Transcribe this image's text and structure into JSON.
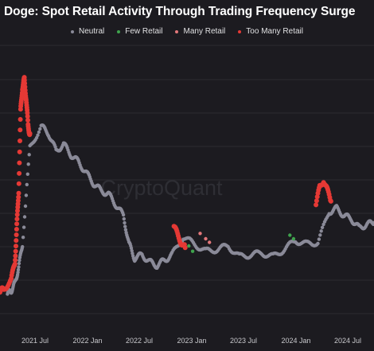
{
  "chart_data": {
    "type": "scatter",
    "title": "Doge: Spot Retail Activity Through Trading Frequency Surge",
    "watermark": "CryptoQuant",
    "xlabel": "",
    "ylabel": "",
    "x_ticks": [
      "2021 Jul",
      "2022 Jan",
      "2022 Jul",
      "2023 Jan",
      "2023 Jul",
      "2024 Jan",
      "2024 Jul",
      "2024 Jan"
    ],
    "legend_placement": "top-center",
    "grid": "horizontal",
    "colors": {
      "Neutral": "#8a8a98",
      "Few Retail": "#3fa34d",
      "Many Retail": "#e3777a",
      "Too Many Retail": "#e53935"
    },
    "series": [
      {
        "name": "Neutral",
        "points": [
          [
            0.02,
            0.1
          ],
          [
            0.03,
            0.2
          ],
          [
            0.04,
            0.4
          ],
          [
            0.05,
            0.85
          ],
          [
            0.06,
            1.5
          ],
          [
            0.08,
            4.2
          ],
          [
            0.11,
            4.8
          ],
          [
            0.13,
            4.6
          ],
          [
            0.15,
            4.1
          ],
          [
            0.17,
            4.3
          ],
          [
            0.19,
            4.0
          ],
          [
            0.21,
            3.8
          ],
          [
            0.23,
            3.5
          ],
          [
            0.25,
            3.2
          ],
          [
            0.27,
            3.0
          ],
          [
            0.29,
            2.9
          ],
          [
            0.31,
            2.6
          ],
          [
            0.33,
            2.3
          ],
          [
            0.345,
            1.5
          ],
          [
            0.36,
            1.1
          ],
          [
            0.38,
            1.2
          ],
          [
            0.4,
            1.0
          ],
          [
            0.42,
            0.9
          ],
          [
            0.44,
            1.05
          ],
          [
            0.46,
            1.2
          ],
          [
            0.49,
            1.7
          ],
          [
            0.52,
            1.5
          ],
          [
            0.55,
            1.3
          ],
          [
            0.58,
            1.35
          ],
          [
            0.61,
            1.45
          ],
          [
            0.64,
            1.15
          ],
          [
            0.67,
            1.2
          ],
          [
            0.7,
            1.25
          ],
          [
            0.73,
            1.15
          ],
          [
            0.76,
            1.35
          ],
          [
            0.79,
            1.6
          ],
          [
            0.82,
            1.5
          ],
          [
            0.85,
            1.55
          ],
          [
            0.88,
            2.4
          ],
          [
            0.9,
            2.5
          ],
          [
            0.92,
            2.3
          ],
          [
            0.94,
            2.2
          ],
          [
            0.96,
            1.95
          ],
          [
            0.98,
            2.05
          ],
          [
            1.0,
            2.1
          ]
        ]
      },
      {
        "name": "Few Retail",
        "points": [
          [
            0.505,
            1.45
          ],
          [
            0.515,
            1.3
          ],
          [
            0.775,
            1.75
          ],
          [
            0.785,
            1.65
          ]
        ]
      },
      {
        "name": "Many Retail",
        "points": [
          [
            0.535,
            1.8
          ],
          [
            0.55,
            1.65
          ],
          [
            0.56,
            1.55
          ]
        ]
      },
      {
        "name": "Too Many Retail",
        "points": [
          [
            0.0,
            0.15
          ],
          [
            0.01,
            0.25
          ],
          [
            0.03,
            0.5
          ],
          [
            0.04,
            1.0
          ],
          [
            0.045,
            2.0
          ],
          [
            0.05,
            3.0
          ],
          [
            0.055,
            5.2
          ],
          [
            0.06,
            5.9
          ],
          [
            0.065,
            6.1
          ],
          [
            0.07,
            5.6
          ],
          [
            0.075,
            4.8
          ],
          [
            0.08,
            4.6
          ],
          [
            0.465,
            2.0
          ],
          [
            0.475,
            1.75
          ],
          [
            0.485,
            1.55
          ],
          [
            0.495,
            1.4
          ],
          [
            0.845,
            2.6
          ],
          [
            0.855,
            3.1
          ],
          [
            0.865,
            3.3
          ],
          [
            0.875,
            3.0
          ],
          [
            0.885,
            2.7
          ]
        ]
      }
    ]
  }
}
